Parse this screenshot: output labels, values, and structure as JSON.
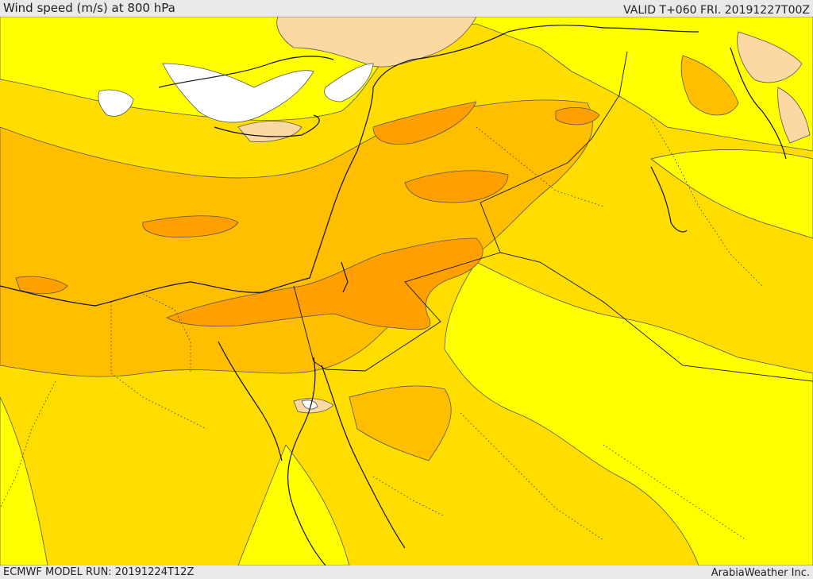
{
  "header": {
    "title": "Wind speed (m/s) at 800 hPa",
    "valid": "VALID T+060 FRI. 20191227T00Z"
  },
  "footer": {
    "model_run": "ECMWF MODEL RUN: 20191224T12Z",
    "credit": "ArabiaWeather Inc."
  },
  "colors": {
    "band_low": "#ffffff",
    "band_peach": "#fcd9a3",
    "band_yellow": "#ffff00",
    "band_gold": "#ffdd00",
    "band_amber": "#ffbe00",
    "band_orange": "#ff9f00",
    "line": "#222222"
  }
}
